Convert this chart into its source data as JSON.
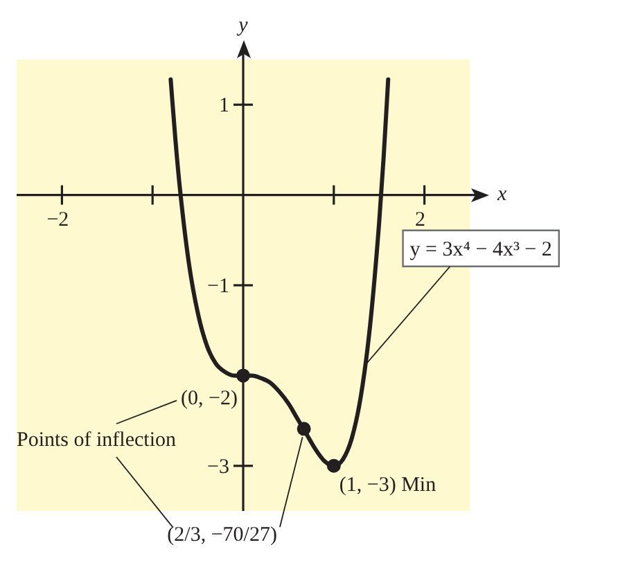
{
  "chart_data": {
    "type": "line",
    "xlabel": "x",
    "ylabel": "y",
    "xlim": [
      -2.5,
      2.5
    ],
    "ylim": [
      -3.5,
      1.5
    ],
    "xticks": [
      {
        "value": -2,
        "label": "−2"
      },
      {
        "value": -1,
        "label": null
      },
      {
        "value": 1,
        "label": null
      },
      {
        "value": 2,
        "label": "2"
      }
    ],
    "yticks": [
      1,
      {
        "value": -1,
        "label": "−1"
      },
      {
        "value": -3,
        "label": "−3"
      }
    ],
    "grid": false,
    "legend": false,
    "series": [
      {
        "type": "line",
        "color": "#231f20",
        "marker": "none",
        "x": [
          -0.8,
          -0.75,
          -0.7,
          -0.6,
          -0.5,
          -0.4,
          -0.3,
          -0.2,
          -0.1,
          0,
          0.1,
          0.2,
          0.3,
          0.4,
          0.5,
          0.6,
          0.7,
          0.8,
          0.9,
          1,
          1.1,
          1.2,
          1.3,
          1.4,
          1.5,
          1.55,
          1.6
        ],
        "values": [
          1.28,
          0.64,
          0.09,
          -0.75,
          -1.31,
          -1.67,
          -1.87,
          -1.96,
          -2,
          -2,
          -2,
          -2.03,
          -2.08,
          -2.18,
          -2.31,
          -2.48,
          -2.65,
          -2.82,
          -2.95,
          -3,
          -2.93,
          -2.69,
          -2.22,
          -1.45,
          -0.31,
          0.42,
          1.28
        ]
      },
      {
        "type": "scatter",
        "color": "#231f20",
        "marker": "circle",
        "x": [
          0,
          0.67,
          1
        ],
        "values": [
          -2,
          -2.59,
          -3
        ]
      }
    ],
    "annotations": [
      {
        "text": "y = 3x⁴ − 4x³ − 2",
        "x": 1.35,
        "y": -1.88
      },
      {
        "text": "(0, −2)",
        "x": 0,
        "y": -2
      },
      {
        "text": "(2/3, −70/27)",
        "x": 0.67,
        "y": -2.59
      },
      {
        "text": "(1, −3) Min",
        "x": 1,
        "y": -3
      },
      "Points of inflection"
    ]
  }
}
